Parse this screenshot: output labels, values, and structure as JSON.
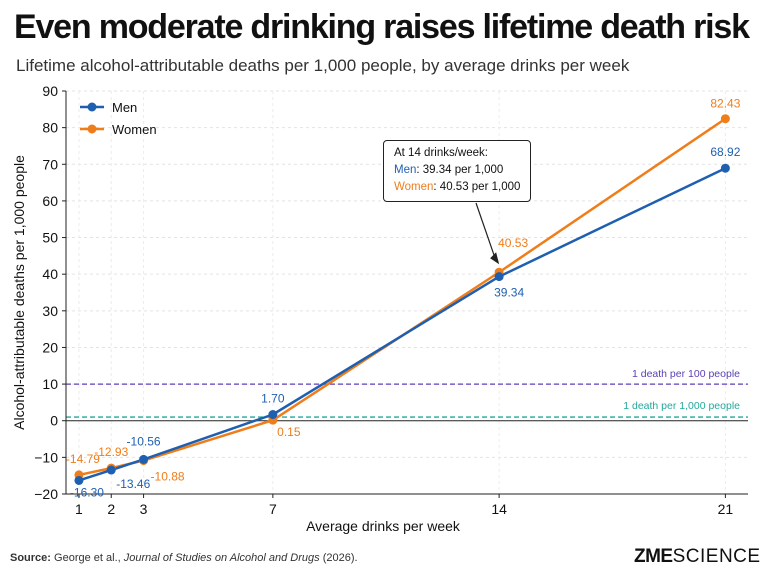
{
  "header": {
    "title": "Even moderate drinking raises lifetime death risk",
    "subtitle": "Lifetime alcohol-attributable deaths per 1,000 people, by average drinks per week"
  },
  "footer": {
    "source_label": "Source:",
    "source_authors": "George et al., ",
    "source_journal": "Journal of Studies on Alcohol and Drugs",
    "source_year": " (2026).",
    "logo_zme": "ZME",
    "logo_science": "SCIENCE"
  },
  "colors": {
    "men": "#1f5fb0",
    "women": "#ef7d1a",
    "ref100": "#5b3fb5",
    "ref1000": "#23a89a"
  },
  "callout": {
    "heading": "At 14 drinks/week:",
    "men_label": "Men",
    "men_value": ": 39.34 per 1,000",
    "women_label": "Women",
    "women_value": ": 40.53 per 1,000"
  },
  "chart_data": {
    "type": "line",
    "xlabel": "Average drinks per week",
    "ylabel": "Alcohol-attributable deaths per 1,000 people",
    "x": [
      1,
      2,
      3,
      7,
      14,
      21
    ],
    "x_tick_labels": [
      "1",
      "2",
      "3",
      "7",
      "14",
      "21"
    ],
    "ylim": [
      -20,
      90
    ],
    "y_ticks": [
      -20,
      -10,
      0,
      10,
      20,
      30,
      40,
      50,
      60,
      70,
      80,
      90
    ],
    "y_tick_labels": [
      "−20",
      "−10",
      "0",
      "10",
      "20",
      "30",
      "40",
      "50",
      "60",
      "70",
      "80",
      "90"
    ],
    "grid": true,
    "legend_position": "top-left",
    "series": [
      {
        "name": "Men",
        "values": [
          -16.3,
          -13.46,
          -10.56,
          1.7,
          39.34,
          68.92
        ],
        "labels": [
          "-16.30",
          "-13.46",
          "-10.56",
          "1.70",
          "39.34",
          "68.92"
        ]
      },
      {
        "name": "Women",
        "values": [
          -14.79,
          -12.93,
          -10.88,
          0.15,
          40.53,
          82.43
        ],
        "labels": [
          "-14.79",
          "-12.93",
          "-10.88",
          "0.15",
          "40.53",
          "82.43"
        ]
      }
    ],
    "reference_lines": [
      {
        "y": 10,
        "label": "1 death per 100 people"
      },
      {
        "y": 1,
        "label": "1 death per 1,000 people"
      }
    ]
  }
}
